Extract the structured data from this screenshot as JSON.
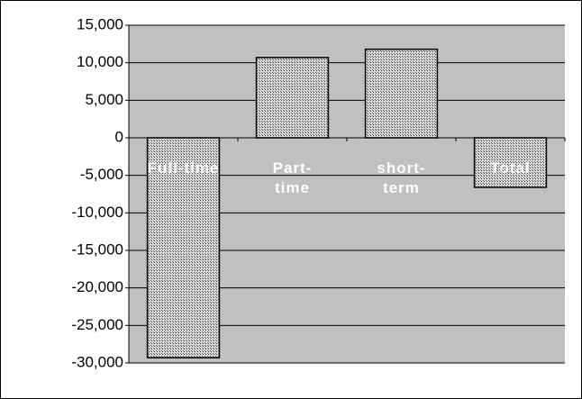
{
  "chart_data": {
    "type": "bar",
    "categories": [
      "Full-time",
      "Part-time",
      "short-term",
      "Total"
    ],
    "values": [
      -29300,
      10700,
      11800,
      -6600
    ],
    "color": "url(#hatch)",
    "ylim": [
      -30000,
      15000
    ],
    "yticks": [
      {
        "value": -30000,
        "label": "-30,000"
      },
      {
        "value": -25000,
        "label": "-25,000"
      },
      {
        "value": -20000,
        "label": "-20,000"
      },
      {
        "value": -15000,
        "label": "-15,000"
      },
      {
        "value": -10000,
        "label": "-10,000"
      },
      {
        "value": -5000,
        "label": "-5,000"
      },
      0,
      {
        "value": 5000,
        "label": "5,000"
      },
      {
        "value": 10000,
        "label": "10,000"
      },
      {
        "value": 15000,
        "label": "15,000"
      }
    ],
    "grid": true
  }
}
